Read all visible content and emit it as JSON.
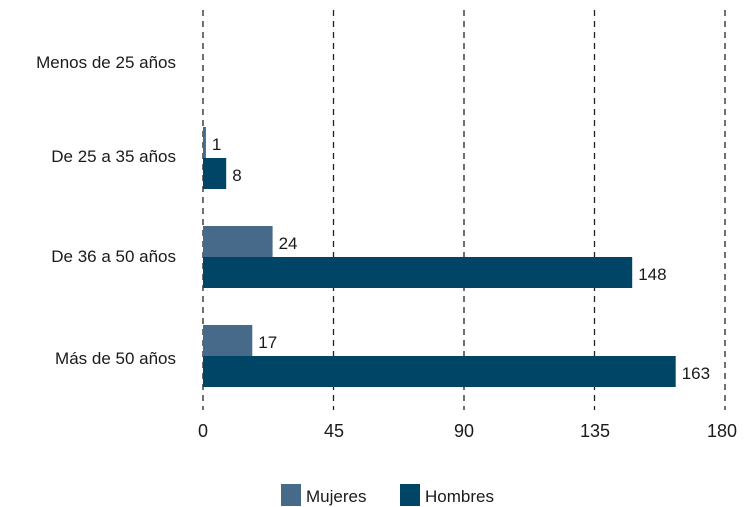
{
  "chart_data": {
    "type": "bar",
    "orientation": "horizontal",
    "title": "",
    "xlabel": "",
    "ylabel": "",
    "categories": [
      "Menos de 25 años",
      "De 25 a 35 años",
      "De 36 a 50 años",
      "Más de 50 años"
    ],
    "series": [
      {
        "name": "Mujeres",
        "values": [
          0,
          1,
          24,
          17
        ],
        "labels": [
          "",
          "1",
          "24",
          "17"
        ],
        "color": "#476a8a"
      },
      {
        "name": "Hombres",
        "values": [
          0,
          8,
          148,
          163
        ],
        "labels": [
          "",
          "8",
          "148",
          "163"
        ],
        "color": "#004466"
      }
    ],
    "xlim": [
      0,
      180
    ],
    "xticks": [
      0,
      45,
      90,
      135,
      180
    ],
    "xtick_labels": [
      "0",
      "45",
      "90",
      "135",
      "180"
    ],
    "grid": "vertical dashed",
    "legend_position": "bottom-center"
  }
}
